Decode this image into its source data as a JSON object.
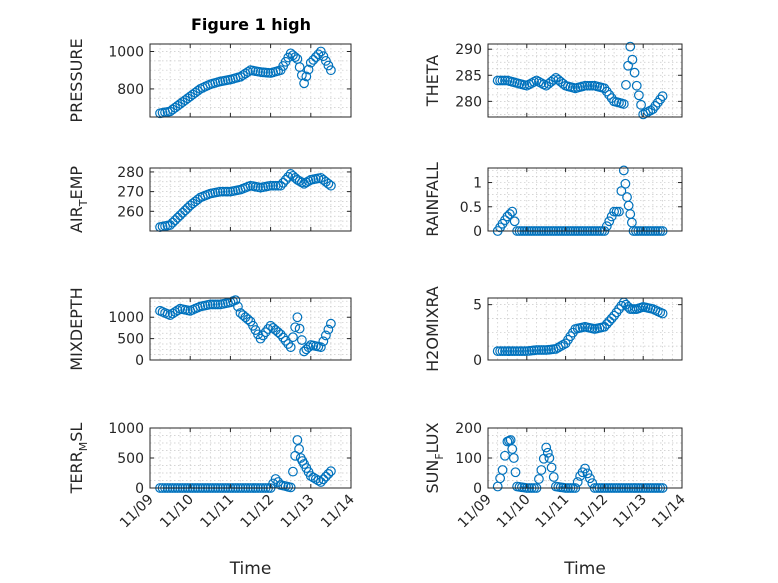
{
  "figure": {
    "title": "Figure 1 high",
    "marker_color": "#0072BD"
  },
  "chart_data": [
    {
      "type": "scatter",
      "ylabel": "PRESSURE",
      "xlim": [
        "11/09",
        "11/14"
      ],
      "ylim": [
        650,
        1040
      ],
      "yticks": [
        800,
        1000
      ],
      "yticklabels": [
        "800",
        "1000"
      ],
      "grid": true,
      "x": [
        "11/09 06:00",
        "11/09 12:00",
        "11/09 18:00",
        "11/10 00:00",
        "11/10 06:00",
        "11/10 12:00",
        "11/10 18:00",
        "11/11 00:00",
        "11/11 06:00",
        "11/11 12:00",
        "11/11 18:00",
        "11/12 00:00",
        "11/12 06:00",
        "11/12 12:00",
        "11/12 16:00",
        "11/12 20:00",
        "11/13 00:00",
        "11/13 06:00",
        "11/13 12:00"
      ],
      "y": [
        670,
        680,
        720,
        760,
        800,
        825,
        840,
        850,
        865,
        900,
        890,
        885,
        900,
        990,
        960,
        830,
        940,
        1000,
        900
      ]
    },
    {
      "type": "scatter",
      "ylabel": "THETA",
      "xlim": [
        "11/09",
        "11/14"
      ],
      "ylim": [
        277,
        291
      ],
      "yticks": [
        280,
        285,
        290
      ],
      "yticklabels": [
        "280",
        "285",
        "290"
      ],
      "grid": true,
      "x": [
        "11/09 06:00",
        "11/09 12:00",
        "11/09 18:00",
        "11/10 00:00",
        "11/10 06:00",
        "11/10 12:00",
        "11/10 18:00",
        "11/11 00:00",
        "11/11 06:00",
        "11/11 12:00",
        "11/11 18:00",
        "11/12 00:00",
        "11/12 06:00",
        "11/12 12:00",
        "11/12 16:00",
        "11/12 20:00",
        "11/13 00:00",
        "11/13 06:00",
        "11/13 12:00"
      ],
      "y": [
        284,
        284,
        283.5,
        283,
        284,
        283,
        284.5,
        283,
        282.5,
        283,
        283,
        282.5,
        280,
        279.5,
        290.5,
        283,
        277.5,
        278.5,
        281
      ]
    },
    {
      "type": "scatter",
      "ylabel": "AIR_TEMP",
      "xlim": [
        "11/09",
        "11/14"
      ],
      "ylim": [
        250,
        282
      ],
      "yticks": [
        260,
        270,
        280
      ],
      "yticklabels": [
        "260",
        "270",
        "280"
      ],
      "grid": true,
      "x": [
        "11/09 06:00",
        "11/09 12:00",
        "11/09 18:00",
        "11/10 00:00",
        "11/10 06:00",
        "11/10 12:00",
        "11/10 18:00",
        "11/11 00:00",
        "11/11 06:00",
        "11/11 12:00",
        "11/11 18:00",
        "11/12 00:00",
        "11/12 06:00",
        "11/12 12:00",
        "11/12 16:00",
        "11/12 20:00",
        "11/13 00:00",
        "11/13 06:00",
        "11/13 12:00"
      ],
      "y": [
        252,
        253,
        258,
        263,
        267,
        269,
        270,
        270,
        271,
        273,
        272,
        273,
        273,
        279,
        276,
        274,
        276,
        277,
        273
      ]
    },
    {
      "type": "scatter",
      "ylabel": "RAINFALL",
      "xlim": [
        "11/09",
        "11/14"
      ],
      "ylim": [
        0,
        1.3
      ],
      "yticks": [
        0,
        0.5,
        1
      ],
      "yticklabels": [
        "0",
        "0.5",
        "1"
      ],
      "grid": true,
      "x": [
        "11/09 06:00",
        "11/09 12:00",
        "11/09 15:00",
        "11/09 18:00",
        "11/10 00:00",
        "11/10 12:00",
        "11/11 00:00",
        "11/11 12:00",
        "11/12 00:00",
        "11/12 06:00",
        "11/12 09:00",
        "11/12 12:00",
        "11/12 14:00",
        "11/12 16:00",
        "11/12 18:00",
        "11/13 00:00",
        "11/13 12:00"
      ],
      "y": [
        0,
        0.3,
        0.4,
        0,
        0,
        0,
        0,
        0,
        0,
        0.4,
        0.4,
        1.25,
        0.7,
        0.35,
        0,
        0,
        0
      ]
    },
    {
      "type": "scatter",
      "ylabel": "MIXDEPTH",
      "xlim": [
        "11/09",
        "11/14"
      ],
      "ylim": [
        0,
        1450
      ],
      "yticks": [
        0,
        500,
        1000
      ],
      "yticklabels": [
        "0",
        "500",
        "1000"
      ],
      "grid": true,
      "x": [
        "11/09 06:00",
        "11/09 12:00",
        "11/09 18:00",
        "11/10 00:00",
        "11/10 06:00",
        "11/10 12:00",
        "11/10 18:00",
        "11/11 00:00",
        "11/11 03:00",
        "11/11 06:00",
        "11/11 12:00",
        "11/11 18:00",
        "11/12 00:00",
        "11/12 06:00",
        "11/12 12:00",
        "11/12 16:00",
        "11/12 20:00",
        "11/13 00:00",
        "11/13 06:00",
        "11/13 12:00"
      ],
      "y": [
        1150,
        1050,
        1200,
        1150,
        1250,
        1300,
        1300,
        1350,
        1400,
        1100,
        900,
        500,
        800,
        600,
        300,
        1000,
        200,
        350,
        300,
        850
      ]
    },
    {
      "type": "scatter",
      "ylabel": "H2OMIXRA",
      "xlim": [
        "11/09",
        "11/14"
      ],
      "ylim": [
        0,
        5.6
      ],
      "yticks": [
        0,
        5
      ],
      "yticklabels": [
        "0",
        "5"
      ],
      "grid": true,
      "x": [
        "11/09 06:00",
        "11/09 12:00",
        "11/09 18:00",
        "11/10 00:00",
        "11/10 06:00",
        "11/10 12:00",
        "11/10 18:00",
        "11/11 00:00",
        "11/11 06:00",
        "11/11 12:00",
        "11/11 18:00",
        "11/12 00:00",
        "11/12 06:00",
        "11/12 12:00",
        "11/12 16:00",
        "11/12 20:00",
        "11/13 00:00",
        "11/13 06:00",
        "11/13 12:00"
      ],
      "y": [
        0.8,
        0.8,
        0.8,
        0.8,
        0.9,
        0.9,
        1.0,
        1.5,
        2.8,
        3.0,
        2.8,
        3.0,
        4.0,
        5.2,
        4.6,
        4.6,
        4.8,
        4.6,
        4.2
      ]
    },
    {
      "type": "scatter",
      "ylabel": "TERR_MSL",
      "xlim": [
        "11/09",
        "11/14"
      ],
      "ylim": [
        0,
        1000
      ],
      "yticks": [
        0,
        500,
        1000
      ],
      "yticklabels": [
        "0",
        "500",
        "1000"
      ],
      "grid": true,
      "x": [
        "11/09 06:00",
        "11/09 18:00",
        "11/10 06:00",
        "11/10 18:00",
        "11/11 06:00",
        "11/11 18:00",
        "11/12 00:00",
        "11/12 03:00",
        "11/12 06:00",
        "11/12 12:00",
        "11/12 16:00",
        "11/12 18:00",
        "11/12 20:00",
        "11/13 00:00",
        "11/13 06:00",
        "11/13 12:00"
      ],
      "y": [
        0,
        0,
        0,
        0,
        0,
        0,
        0,
        150,
        50,
        10,
        800,
        500,
        400,
        200,
        100,
        280
      ]
    },
    {
      "type": "scatter",
      "ylabel": "SUN_FLUX",
      "xlim": [
        "11/09",
        "11/14"
      ],
      "ylim": [
        0,
        200
      ],
      "yticks": [
        0,
        100,
        200
      ],
      "yticklabels": [
        "0",
        "100",
        "200"
      ],
      "grid": true,
      "x": [
        "11/09 06:00",
        "11/09 09:00",
        "11/09 12:00",
        "11/09 14:00",
        "11/09 16:00",
        "11/09 18:00",
        "11/10 00:00",
        "11/10 06:00",
        "11/10 09:00",
        "11/10 12:00",
        "11/10 14:00",
        "11/10 18:00",
        "11/11 00:00",
        "11/11 06:00",
        "11/11 09:00",
        "11/11 12:00",
        "11/11 18:00",
        "11/12 00:00",
        "11/12 12:00",
        "11/13 00:00",
        "11/13 12:00"
      ],
      "y": [
        5,
        60,
        155,
        160,
        100,
        5,
        0,
        0,
        60,
        135,
        100,
        5,
        0,
        0,
        40,
        65,
        0,
        0,
        0,
        0,
        0
      ]
    }
  ],
  "xticklabels": [
    "11/09",
    "11/10",
    "11/11",
    "11/12",
    "11/13",
    "11/14"
  ],
  "xlabel": "Time"
}
